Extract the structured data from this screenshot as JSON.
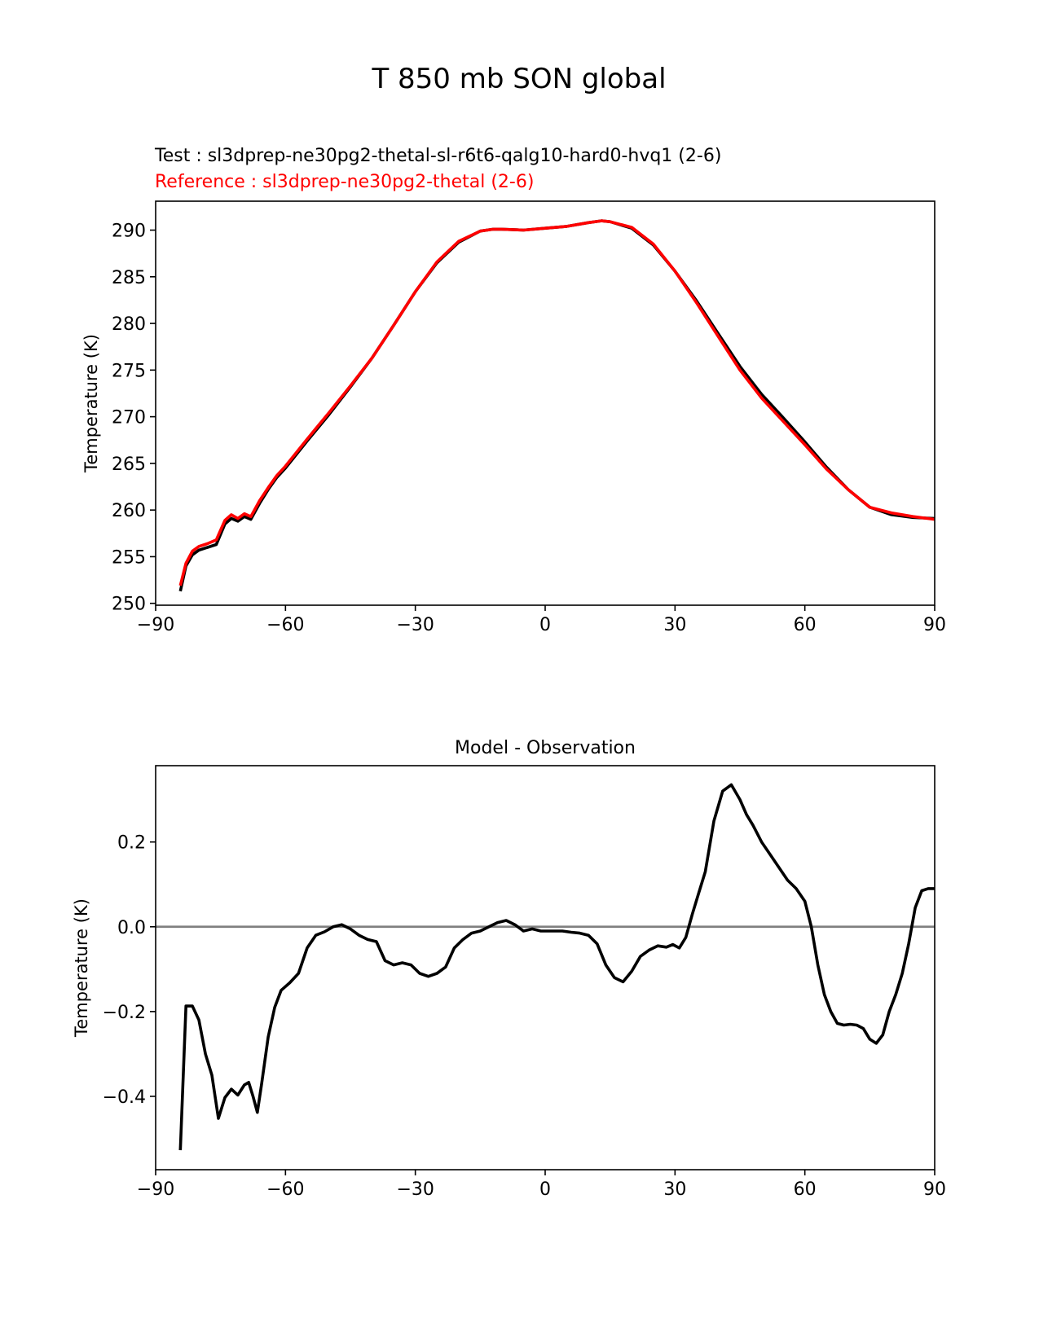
{
  "figure": {
    "suptitle": "T 850 mb SON global"
  },
  "chart_data": [
    {
      "type": "line",
      "test_label": "Test : sl3dprep-ne30pg2-thetal-sl-r6t6-qalg10-hard0-hvq1 (2-6)",
      "reference_label": "Reference : sl3dprep-ne30pg2-thetal (2-6)",
      "xlabel": "",
      "ylabel": "Temperature (K)",
      "xlim": [
        -90,
        90
      ],
      "ylim": [
        249.8,
        293.1
      ],
      "xticks": [
        -90,
        -60,
        -30,
        0,
        30,
        60,
        90
      ],
      "xtick_labels": [
        "−90",
        "−60",
        "−30",
        "0",
        "30",
        "60",
        "90"
      ],
      "yticks": [
        250,
        255,
        260,
        265,
        270,
        275,
        280,
        285,
        290
      ],
      "ytick_labels": [
        "250",
        "255",
        "260",
        "265",
        "270",
        "275",
        "280",
        "285",
        "290"
      ],
      "grid": false,
      "series": [
        {
          "role": "test",
          "color": "#000000",
          "x": [
            -84.3,
            -83,
            -81.5,
            -80,
            -78,
            -76,
            -74,
            -72.5,
            -71,
            -69.5,
            -68,
            -66,
            -64,
            -62,
            -60,
            -55,
            -50,
            -45,
            -40,
            -35,
            -30,
            -25,
            -20,
            -15,
            -12,
            -10,
            -5,
            0,
            5,
            10,
            13,
            15,
            20,
            25,
            30,
            35,
            40,
            45,
            50,
            55,
            60,
            65,
            70,
            75,
            80,
            85,
            90
          ],
          "y": [
            251.3,
            254.0,
            255.2,
            255.7,
            256.0,
            256.3,
            258.5,
            259.1,
            258.8,
            259.3,
            259.0,
            260.7,
            262.2,
            263.5,
            264.5,
            267.4,
            270.2,
            273.2,
            276.3,
            279.8,
            283.4,
            286.5,
            288.7,
            289.9,
            290.1,
            290.1,
            290.0,
            290.2,
            290.4,
            290.8,
            291.0,
            290.9,
            290.2,
            288.4,
            285.6,
            282.4,
            278.9,
            275.4,
            272.4,
            269.9,
            267.3,
            264.6,
            262.2,
            260.3,
            259.5,
            259.2,
            259.1
          ]
        },
        {
          "role": "reference",
          "color": "#ff0000",
          "x": [
            -84.3,
            -83,
            -81.5,
            -80,
            -78,
            -76,
            -74,
            -72.5,
            -71,
            -69.5,
            -68,
            -66,
            -64,
            -62,
            -60,
            -55,
            -50,
            -45,
            -40,
            -35,
            -30,
            -25,
            -20,
            -15,
            -12,
            -10,
            -5,
            0,
            5,
            10,
            13,
            15,
            20,
            25,
            30,
            35,
            40,
            45,
            50,
            55,
            60,
            65,
            70,
            75,
            80,
            85,
            90
          ],
          "y": [
            251.9,
            254.3,
            255.6,
            256.1,
            256.4,
            256.8,
            258.9,
            259.5,
            259.1,
            259.6,
            259.3,
            261.0,
            262.4,
            263.7,
            264.7,
            267.6,
            270.4,
            273.3,
            276.3,
            279.8,
            283.4,
            286.6,
            288.8,
            289.9,
            290.1,
            290.1,
            290.0,
            290.2,
            290.4,
            290.8,
            291.0,
            290.9,
            290.3,
            288.5,
            285.6,
            282.2,
            278.6,
            275.0,
            272.0,
            269.5,
            267.0,
            264.4,
            262.2,
            260.3,
            259.7,
            259.3,
            259.0
          ]
        }
      ]
    },
    {
      "type": "line",
      "title": "Model - Observation",
      "xlabel": "",
      "ylabel": "Temperature (K)",
      "xlim": [
        -90,
        90
      ],
      "ylim": [
        -0.573,
        0.38
      ],
      "xticks": [
        -90,
        -60,
        -30,
        0,
        30,
        60,
        90
      ],
      "xtick_labels": [
        "−90",
        "−60",
        "−30",
        "0",
        "30",
        "60",
        "90"
      ],
      "yticks": [
        -0.4,
        -0.2,
        0.0,
        0.2
      ],
      "ytick_labels": [
        "−0.4",
        "−0.2",
        "0.0",
        "0.2"
      ],
      "grid": false,
      "reference_line": {
        "y": 0.0,
        "color": "#808080"
      },
      "series": [
        {
          "color": "#000000",
          "x": [
            -84.3,
            -83,
            -81.5,
            -80,
            -78.5,
            -77,
            -75.5,
            -74,
            -72.5,
            -71,
            -69.5,
            -68.5,
            -67.5,
            -66.5,
            -65.5,
            -64,
            -62.5,
            -61,
            -59,
            -57,
            -55,
            -53,
            -51,
            -49,
            -47,
            -45,
            -43,
            -41,
            -39,
            -37,
            -35,
            -33,
            -31,
            -29,
            -27,
            -25,
            -23,
            -21,
            -19,
            -17,
            -15,
            -13,
            -11,
            -9,
            -7,
            -5,
            -3,
            -1,
            0,
            2,
            4,
            6,
            8,
            10,
            12,
            14,
            16,
            18,
            20,
            22,
            24,
            26,
            28,
            29.5,
            31,
            32.5,
            34,
            35.5,
            37,
            39,
            41,
            43,
            45,
            46.5,
            48,
            50,
            52,
            54,
            56,
            58,
            60,
            61.5,
            63,
            64.5,
            66,
            67.5,
            69,
            70.5,
            72,
            73.5,
            75,
            76.5,
            78,
            79.5,
            81,
            82.5,
            84,
            85.5,
            87,
            88.5,
            90
          ],
          "y": [
            -0.527,
            -0.187,
            -0.187,
            -0.22,
            -0.3,
            -0.35,
            -0.452,
            -0.403,
            -0.383,
            -0.397,
            -0.373,
            -0.367,
            -0.4,
            -0.438,
            -0.37,
            -0.26,
            -0.19,
            -0.15,
            -0.132,
            -0.11,
            -0.05,
            -0.02,
            -0.012,
            0.0,
            0.005,
            -0.005,
            -0.02,
            -0.03,
            -0.035,
            -0.08,
            -0.09,
            -0.085,
            -0.09,
            -0.11,
            -0.117,
            -0.11,
            -0.095,
            -0.05,
            -0.03,
            -0.015,
            -0.01,
            0.0,
            0.01,
            0.015,
            0.005,
            -0.01,
            -0.005,
            -0.01,
            -0.01,
            -0.01,
            -0.01,
            -0.013,
            -0.015,
            -0.02,
            -0.04,
            -0.09,
            -0.12,
            -0.13,
            -0.105,
            -0.07,
            -0.055,
            -0.045,
            -0.048,
            -0.042,
            -0.05,
            -0.025,
            0.03,
            0.08,
            0.13,
            0.25,
            0.32,
            0.335,
            0.3,
            0.265,
            0.24,
            0.2,
            0.17,
            0.14,
            0.11,
            0.09,
            0.06,
            0.0,
            -0.09,
            -0.16,
            -0.2,
            -0.228,
            -0.232,
            -0.23,
            -0.232,
            -0.24,
            -0.265,
            -0.275,
            -0.255,
            -0.2,
            -0.16,
            -0.11,
            -0.04,
            0.045,
            0.085,
            0.09,
            0.09
          ]
        }
      ]
    }
  ]
}
